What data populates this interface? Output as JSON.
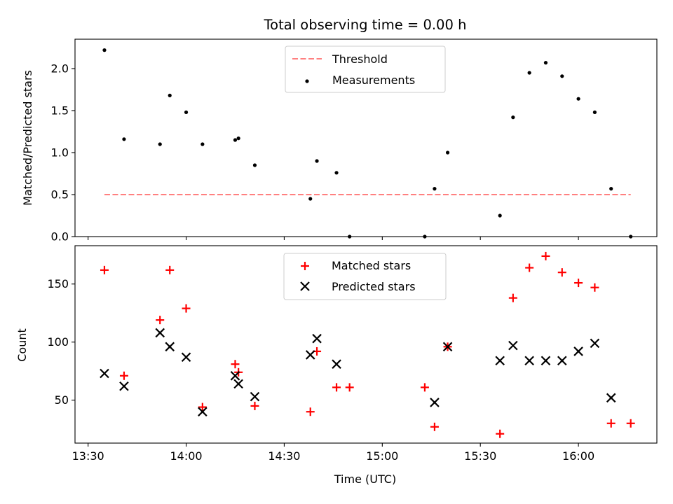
{
  "chart_data": [
    {
      "type": "scatter",
      "title": "Total observing time = 0.00 h",
      "xlabel": "",
      "ylabel": "Matched/Predicted stars",
      "ylim": [
        0,
        2.35
      ],
      "yticks": [
        0.0,
        0.5,
        1.0,
        1.5,
        2.0
      ],
      "ytick_labels": [
        "0.0",
        "0.5",
        "1.0",
        "1.5",
        "2.0"
      ],
      "xlim": [
        "13:26",
        "16:24"
      ],
      "xticks": [
        "13:30",
        "14:00",
        "14:30",
        "15:00",
        "15:30",
        "16:00"
      ],
      "xtick_labels_visible": false,
      "legend_position": "top-center",
      "series": [
        {
          "name": "Threshold",
          "kind": "dashed-line",
          "color": "#ff8080",
          "x": [
            "13:35",
            "16:16"
          ],
          "y": [
            0.5,
            0.5
          ]
        },
        {
          "name": "Measurements",
          "kind": "points",
          "color": "#000000",
          "x": [
            "13:35",
            "13:41",
            "13:52",
            "13:55",
            "14:00",
            "14:05",
            "14:15",
            "14:16",
            "14:21",
            "14:38",
            "14:40",
            "14:46",
            "14:50",
            "15:13",
            "15:16",
            "15:20",
            "15:36",
            "15:40",
            "15:45",
            "15:50",
            "15:55",
            "16:00",
            "16:05",
            "16:10",
            "16:16"
          ],
          "y": [
            2.22,
            1.16,
            1.1,
            1.68,
            1.48,
            1.1,
            1.15,
            1.17,
            0.85,
            0.45,
            0.9,
            0.76,
            0.0,
            0.0,
            0.57,
            1.0,
            0.25,
            1.42,
            1.95,
            2.07,
            1.91,
            1.64,
            1.48,
            0.57,
            0.0
          ]
        }
      ]
    },
    {
      "type": "scatter",
      "title": "",
      "xlabel": "Time (UTC)",
      "ylabel": "Count",
      "ylim": [
        13,
        183
      ],
      "yticks": [
        50,
        100,
        150
      ],
      "ytick_labels": [
        "50",
        "100",
        "150"
      ],
      "xlim": [
        "13:26",
        "16:24"
      ],
      "xticks": [
        "13:30",
        "14:00",
        "14:30",
        "15:00",
        "15:30",
        "16:00"
      ],
      "xtick_labels": [
        "13:30",
        "14:00",
        "14:30",
        "15:00",
        "15:30",
        "16:00"
      ],
      "legend_position": "top-center",
      "series": [
        {
          "name": "Matched stars",
          "marker": "plus",
          "color": "#ff0000",
          "x": [
            "13:35",
            "13:41",
            "13:52",
            "13:55",
            "14:00",
            "14:05",
            "14:15",
            "14:16",
            "14:21",
            "14:38",
            "14:40",
            "14:46",
            "14:50",
            "15:13",
            "15:16",
            "15:20",
            "15:36",
            "15:40",
            "15:45",
            "15:50",
            "15:55",
            "16:00",
            "16:05",
            "16:10",
            "16:16"
          ],
          "y": [
            162,
            71,
            119,
            162,
            129,
            44,
            81,
            74,
            45,
            40,
            92,
            61,
            61,
            61,
            27,
            96,
            21,
            138,
            164,
            174,
            160,
            151,
            147,
            30,
            30
          ]
        },
        {
          "name": "Predicted stars",
          "marker": "x",
          "color": "#000000",
          "x": [
            "13:35",
            "13:41",
            "13:52",
            "13:55",
            "14:00",
            "14:05",
            "14:15",
            "14:16",
            "14:21",
            "14:38",
            "14:40",
            "14:46",
            "15:16",
            "15:20",
            "15:36",
            "15:40",
            "15:45",
            "15:50",
            "15:55",
            "16:00",
            "16:05",
            "16:10"
          ],
          "y": [
            73,
            62,
            108,
            96,
            87,
            40,
            71,
            64,
            53,
            89,
            103,
            81,
            48,
            96,
            84,
            97,
            84,
            84,
            84,
            92,
            99,
            52
          ]
        }
      ]
    }
  ]
}
